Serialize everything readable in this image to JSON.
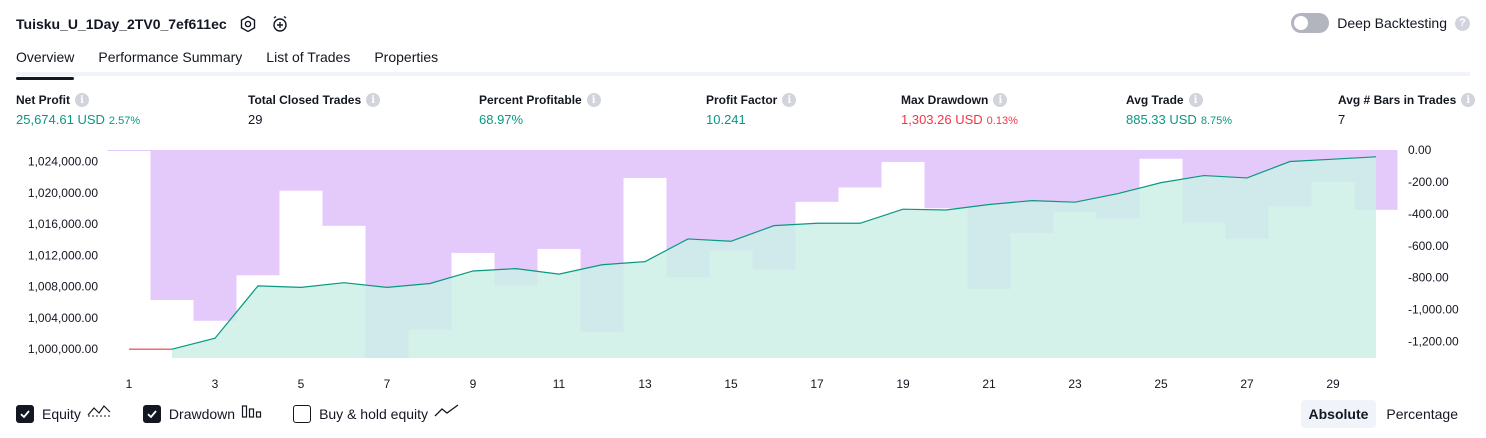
{
  "header": {
    "strategy_name": "Tuisku_U_1Day_2TV0_7ef611ec",
    "deep_backtesting_label": "Deep Backtesting",
    "help_glyph": "?",
    "info_glyph": "i"
  },
  "tabs": [
    {
      "label": "Overview",
      "active": true
    },
    {
      "label": "Performance Summary",
      "active": false
    },
    {
      "label": "List of Trades",
      "active": false
    },
    {
      "label": "Properties",
      "active": false
    }
  ],
  "metrics": [
    {
      "label": "Net Profit",
      "value": "25,674.61 USD",
      "sub": "2.57%",
      "tone": "green"
    },
    {
      "label": "Total Closed Trades",
      "value": "29",
      "sub": "",
      "tone": "dark"
    },
    {
      "label": "Percent Profitable",
      "value": "68.97%",
      "sub": "",
      "tone": "green"
    },
    {
      "label": "Profit Factor",
      "value": "10.241",
      "sub": "",
      "tone": "green"
    },
    {
      "label": "Max Drawdown",
      "value": "1,303.26 USD",
      "sub": "0.13%",
      "tone": "red"
    },
    {
      "label": "Avg Trade",
      "value": "885.33 USD",
      "sub": "8.75%",
      "tone": "green"
    },
    {
      "label": "Avg # Bars in Trades",
      "value": "7",
      "sub": "",
      "tone": "dark"
    }
  ],
  "chart_data": {
    "type": "line+bar",
    "x_ticks": [
      1,
      3,
      5,
      7,
      9,
      11,
      13,
      15,
      17,
      19,
      21,
      23,
      25,
      27,
      29
    ],
    "equity": {
      "name": "Equity",
      "x": [
        1,
        2,
        3,
        4,
        5,
        6,
        7,
        8,
        9,
        10,
        11,
        12,
        13,
        14,
        15,
        16,
        17,
        18,
        19,
        20,
        21,
        22,
        23,
        24,
        25,
        26,
        27,
        28,
        29,
        30
      ],
      "values": [
        1000000,
        1000000,
        1001400,
        1008100,
        1007900,
        1008500,
        1007900,
        1008400,
        1010000,
        1010300,
        1009600,
        1010800,
        1011200,
        1014100,
        1013800,
        1015800,
        1016100,
        1016100,
        1017900,
        1017800,
        1018500,
        1019000,
        1018800,
        1019900,
        1021300,
        1022200,
        1021900,
        1024000,
        1024300,
        1024600
      ],
      "ylim": [
        999000,
        1025600
      ],
      "y_ticks": [
        "1,000,000.00",
        "1,004,000.00",
        "1,008,000.00",
        "1,012,000.00",
        "1,016,000.00",
        "1,020,000.00",
        "1,024,000.00"
      ],
      "color_up": "#089981",
      "color_down": "#f23645",
      "fill": "#cdeee6"
    },
    "drawdown": {
      "name": "Drawdown",
      "x": [
        1,
        2,
        3,
        4,
        5,
        6,
        7,
        8,
        9,
        10,
        11,
        12,
        13,
        14,
        15,
        16,
        17,
        18,
        19,
        20,
        21,
        22,
        23,
        24,
        25,
        26,
        27,
        28,
        29,
        30
      ],
      "values": [
        -5,
        -940,
        -1070,
        -785,
        -255,
        -475,
        -1303,
        -1125,
        -645,
        -850,
        -620,
        -1140,
        -175,
        -795,
        -630,
        -750,
        -325,
        -235,
        -75,
        -365,
        -870,
        -520,
        -390,
        -430,
        -55,
        -455,
        -555,
        -355,
        -200,
        -375
      ],
      "ylim": [
        -1303.26,
        0
      ],
      "y_ticks": [
        "0.00",
        "-200.00",
        "-400.00",
        "-600.00",
        "-800.00",
        "-1,000.00",
        "-1,200.00"
      ],
      "color": "#e1c4fb"
    }
  },
  "legend": [
    {
      "label": "Equity",
      "checked": true,
      "icon": "equity-line-icon"
    },
    {
      "label": "Drawdown",
      "checked": true,
      "icon": "drawdown-bars-icon"
    },
    {
      "label": "Buy & hold equity",
      "checked": false,
      "icon": "buy-hold-line-icon"
    }
  ],
  "modes": [
    {
      "label": "Absolute",
      "active": true
    },
    {
      "label": "Percentage",
      "active": false
    }
  ]
}
